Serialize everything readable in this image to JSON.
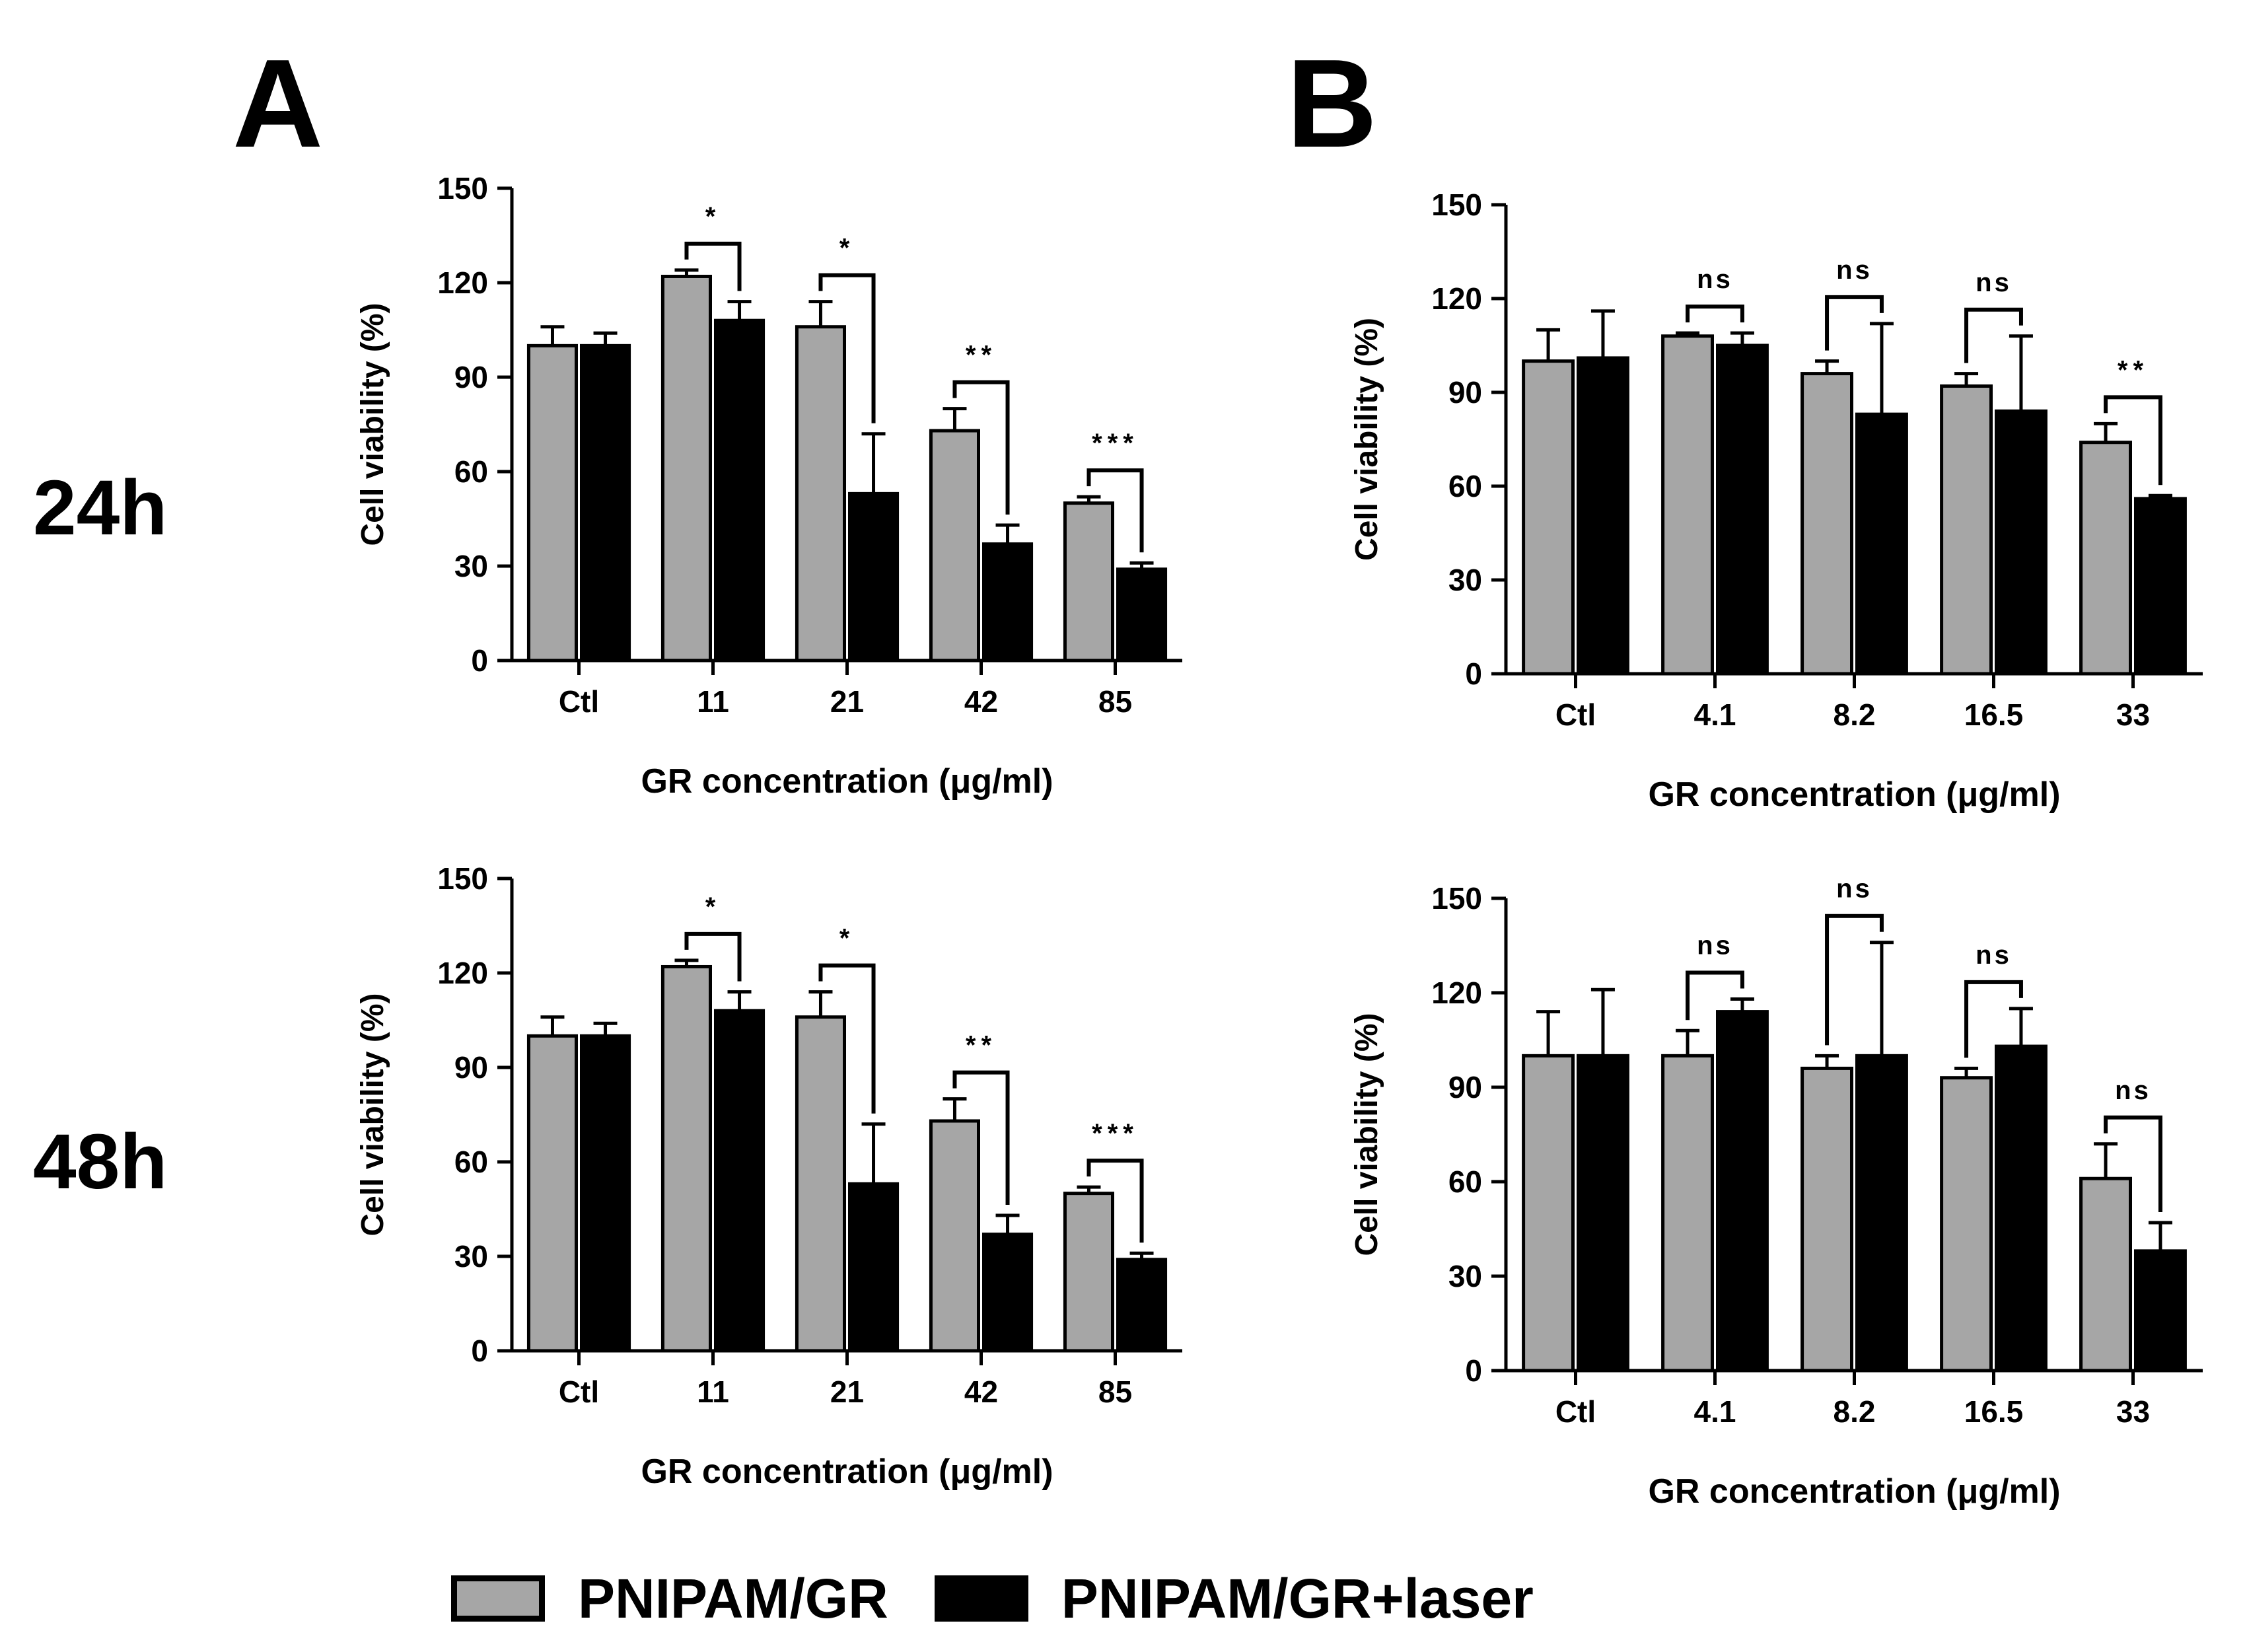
{
  "panel_labels": {
    "a": "A",
    "b": "B"
  },
  "row_labels": {
    "top": "24h",
    "bottom": "48h"
  },
  "colors": {
    "series1": "#a6a6a6",
    "series2": "#000000",
    "axis": "#000000"
  },
  "legend": [
    {
      "label": "PNIPAM/GR",
      "color": "#a6a6a6"
    },
    {
      "label": "PNIPAM/GR+laser",
      "color": "#000000"
    }
  ],
  "chart_data": [
    {
      "id": "A-24h",
      "type": "bar",
      "xlabel": "GR concentration (μg/ml)",
      "ylabel": "Cell viability (%)",
      "ylim": [
        0,
        150
      ],
      "yticks": [
        0,
        30,
        60,
        90,
        120,
        150
      ],
      "categories": [
        "Ctl",
        "11",
        "21",
        "42",
        "85"
      ],
      "series": [
        {
          "name": "PNIPAM/GR",
          "values": [
            100,
            122,
            106,
            73,
            50
          ],
          "errors": [
            6,
            2,
            8,
            7,
            2
          ]
        },
        {
          "name": "PNIPAM/GR+laser",
          "values": [
            100,
            108,
            53,
            37,
            29
          ],
          "errors": [
            4,
            6,
            19,
            6,
            2
          ]
        }
      ],
      "annotations": [
        "",
        "*",
        "*",
        "**",
        "***"
      ]
    },
    {
      "id": "B-24h",
      "type": "bar",
      "xlabel": "GR concentration (μg/ml)",
      "ylabel": "Cell viability (%)",
      "ylim": [
        0,
        150
      ],
      "yticks": [
        0,
        30,
        60,
        90,
        120,
        150
      ],
      "categories": [
        "Ctl",
        "4.1",
        "8.2",
        "16.5",
        "33"
      ],
      "series": [
        {
          "name": "PNIPAM/GR",
          "values": [
            100,
            108,
            96,
            92,
            74
          ],
          "errors": [
            10,
            1,
            4,
            4,
            6
          ]
        },
        {
          "name": "PNIPAM/GR+laser",
          "values": [
            101,
            105,
            83,
            84,
            56
          ],
          "errors": [
            15,
            4,
            29,
            24,
            1
          ]
        }
      ],
      "annotations": [
        "",
        "ns",
        "ns",
        "ns",
        "**"
      ]
    },
    {
      "id": "A-48h",
      "type": "bar",
      "xlabel": "GR concentration (μg/ml)",
      "ylabel": "Cell viability (%)",
      "ylim": [
        0,
        150
      ],
      "yticks": [
        0,
        30,
        60,
        90,
        120,
        150
      ],
      "categories": [
        "Ctl",
        "11",
        "21",
        "42",
        "85"
      ],
      "series": [
        {
          "name": "PNIPAM/GR",
          "values": [
            100,
            122,
            106,
            73,
            50
          ],
          "errors": [
            6,
            2,
            8,
            7,
            2
          ]
        },
        {
          "name": "PNIPAM/GR+laser",
          "values": [
            100,
            108,
            53,
            37,
            29
          ],
          "errors": [
            4,
            6,
            19,
            6,
            2
          ]
        }
      ],
      "annotations": [
        "",
        "*",
        "*",
        "**",
        "***"
      ]
    },
    {
      "id": "B-48h",
      "type": "bar",
      "xlabel": "GR concentration (μg/ml)",
      "ylabel": "Cell viability (%)",
      "ylim": [
        0,
        150
      ],
      "yticks": [
        0,
        30,
        60,
        90,
        120,
        150
      ],
      "categories": [
        "Ctl",
        "4.1",
        "8.2",
        "16.5",
        "33"
      ],
      "series": [
        {
          "name": "PNIPAM/GR",
          "values": [
            100,
            100,
            96,
            93,
            61
          ],
          "errors": [
            14,
            8,
            4,
            3,
            11
          ]
        },
        {
          "name": "PNIPAM/GR+laser",
          "values": [
            100,
            114,
            100,
            103,
            38
          ],
          "errors": [
            21,
            4,
            36,
            12,
            9
          ]
        }
      ],
      "annotations": [
        "",
        "ns",
        "ns",
        "ns",
        "ns"
      ]
    }
  ]
}
